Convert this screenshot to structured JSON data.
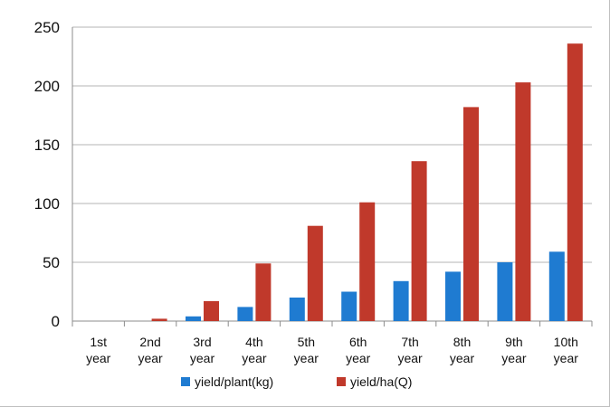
{
  "chart_data": {
    "type": "bar",
    "categories": [
      [
        "1st",
        "year"
      ],
      [
        "2nd",
        "year"
      ],
      [
        "3rd",
        "year"
      ],
      [
        "4th",
        "year"
      ],
      [
        "5th",
        "year"
      ],
      [
        "6th",
        "year"
      ],
      [
        "7th",
        "year"
      ],
      [
        "8th",
        "year"
      ],
      [
        "9th",
        "year"
      ],
      [
        "10th",
        "year"
      ]
    ],
    "series": [
      {
        "name": "yield/plant(kg)",
        "color": "#1f7bd1",
        "values": [
          0,
          0,
          4,
          12,
          20,
          25,
          34,
          42,
          50,
          59
        ]
      },
      {
        "name": "yield/ha(Q)",
        "color": "#c0392b",
        "values": [
          0,
          2,
          17,
          49,
          81,
          101,
          136,
          182,
          203,
          236
        ]
      }
    ],
    "yticks": [
      0,
      50,
      100,
      150,
      200,
      250
    ],
    "ylim": [
      0,
      250
    ],
    "grid": true,
    "legend": "bottom"
  }
}
